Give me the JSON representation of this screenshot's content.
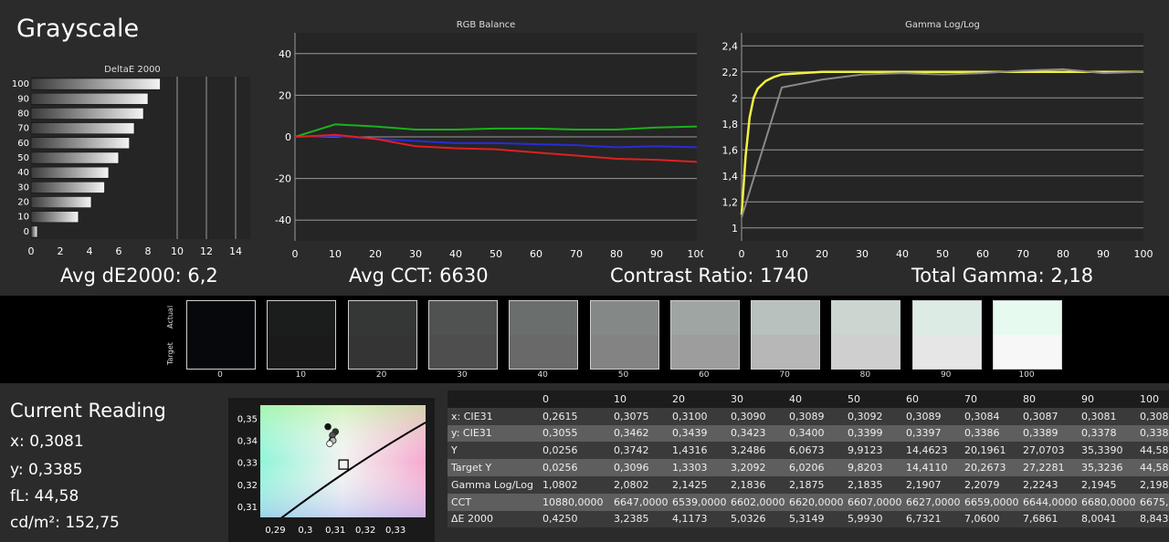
{
  "title": "Grayscale",
  "stats": {
    "avg_de": "Avg dE2000: 6,2",
    "avg_cct": "Avg CCT: 6630",
    "contrast": "Contrast Ratio: 1740",
    "gamma": "Total Gamma: 2,18"
  },
  "swatches": {
    "actual_label": "Actual",
    "target_label": "Target",
    "items": [
      {
        "label": "0",
        "actual": "#07080b",
        "target": "#07080b"
      },
      {
        "label": "10",
        "actual": "#1b1d1d",
        "target": "#1a1a1a"
      },
      {
        "label": "20",
        "actual": "#353737",
        "target": "#343434"
      },
      {
        "label": "30",
        "actual": "#4f5250",
        "target": "#4e4e4e"
      },
      {
        "label": "40",
        "actual": "#6a6e6c",
        "target": "#696969"
      },
      {
        "label": "50",
        "actual": "#848987",
        "target": "#838383"
      },
      {
        "label": "60",
        "actual": "#9ea5a2",
        "target": "#9d9d9d"
      },
      {
        "label": "70",
        "actual": "#b8c1bd",
        "target": "#b7b7b7"
      },
      {
        "label": "80",
        "actual": "#cbd6d0",
        "target": "#cfcfcf"
      },
      {
        "label": "90",
        "actual": "#dcebe4",
        "target": "#e6e6e6"
      },
      {
        "label": "100",
        "actual": "#e6faf0",
        "target": "#f7f7f7"
      }
    ]
  },
  "reading": {
    "title": "Current Reading",
    "x": "x: 0,3081",
    "y": "y: 0,3385",
    "fl": "fL: 44,58",
    "cd": "cd/m²: 152,75"
  },
  "table": {
    "columns": [
      "",
      "0",
      "10",
      "20",
      "30",
      "40",
      "50",
      "60",
      "70",
      "80",
      "90",
      "100"
    ],
    "rows": [
      {
        "label": "x: CIE31",
        "values": [
          "0,2615",
          "0,3075",
          "0,3100",
          "0,3090",
          "0,3089",
          "0,3092",
          "0,3089",
          "0,3084",
          "0,3087",
          "0,3081",
          "0,308"
        ]
      },
      {
        "label": "y: CIE31",
        "values": [
          "0,3055",
          "0,3462",
          "0,3439",
          "0,3423",
          "0,3400",
          "0,3399",
          "0,3397",
          "0,3386",
          "0,3389",
          "0,3378",
          "0,338"
        ]
      },
      {
        "label": "Y",
        "values": [
          "0,0256",
          "0,3742",
          "1,4316",
          "3,2486",
          "6,0673",
          "9,9123",
          "14,4623",
          "20,1961",
          "27,0703",
          "35,3390",
          "44,58"
        ]
      },
      {
        "label": "Target Y",
        "values": [
          "0,0256",
          "0,3096",
          "1,3303",
          "3,2092",
          "6,0206",
          "9,8203",
          "14,4110",
          "20,2673",
          "27,2281",
          "35,3236",
          "44,58"
        ]
      },
      {
        "label": "Gamma Log/Log",
        "values": [
          "1,0802",
          "2,0802",
          "2,1425",
          "2,1836",
          "2,1875",
          "2,1835",
          "2,1907",
          "2,2079",
          "2,2243",
          "2,1945",
          "2,198"
        ]
      },
      {
        "label": "CCT",
        "values": [
          "10880,0000",
          "6647,0000",
          "6539,0000",
          "6602,0000",
          "6620,0000",
          "6607,0000",
          "6627,0000",
          "6659,0000",
          "6644,0000",
          "6680,0000",
          "6675,"
        ]
      },
      {
        "label": "ΔE 2000",
        "values": [
          "0,4250",
          "3,2385",
          "4,1173",
          "5,0326",
          "5,3149",
          "5,9930",
          "6,7321",
          "7,0600",
          "7,6861",
          "8,0041",
          "8,843"
        ]
      }
    ]
  },
  "chart_data": [
    {
      "type": "bar",
      "orientation": "horizontal",
      "title": "DeltaE 2000",
      "categories": [
        "0",
        "10",
        "20",
        "30",
        "40",
        "50",
        "60",
        "70",
        "80",
        "90",
        "100"
      ],
      "values": [
        0.43,
        3.24,
        4.12,
        5.03,
        5.31,
        5.99,
        6.73,
        7.06,
        7.69,
        8.0,
        8.84
      ],
      "xlim": [
        0,
        15
      ],
      "xticks": [
        "0",
        "2",
        "4",
        "6",
        "8",
        "10",
        "12",
        "14"
      ],
      "grid_lines_at": [
        10,
        12,
        14
      ]
    },
    {
      "type": "line",
      "title": "RGB Balance",
      "x": [
        0,
        10,
        20,
        30,
        40,
        50,
        60,
        70,
        80,
        90,
        100
      ],
      "xticks": [
        "0",
        "10",
        "20",
        "30",
        "40",
        "50",
        "60",
        "70",
        "80",
        "90",
        "100"
      ],
      "yticks": [
        "40",
        "20",
        "0",
        "-20",
        "-40"
      ],
      "ylim": [
        -50,
        50
      ],
      "series": [
        {
          "color": "#1cb11c",
          "values": [
            0,
            6,
            5,
            3.5,
            3.5,
            4,
            4,
            3.5,
            3.5,
            4.5,
            5
          ]
        },
        {
          "color": "#2b2bd8",
          "values": [
            0,
            0.5,
            -1,
            -2,
            -3,
            -3,
            -3.5,
            -4,
            -5,
            -4.5,
            -5
          ]
        },
        {
          "color": "#e02020",
          "values": [
            0,
            1,
            -1,
            -4.5,
            -5.5,
            -6,
            -7.5,
            -9,
            -10.5,
            -11,
            -12
          ]
        }
      ]
    },
    {
      "type": "line",
      "title": "Gamma Log/Log",
      "x": [
        0,
        10,
        20,
        30,
        40,
        50,
        60,
        70,
        80,
        90,
        100
      ],
      "xticks": [
        "0",
        "10",
        "20",
        "30",
        "40",
        "50",
        "60",
        "70",
        "80",
        "90",
        "100"
      ],
      "yticks": [
        "2,4",
        "2,2",
        "2",
        "1,8",
        "1,6",
        "1,4",
        "1,2",
        "1"
      ],
      "ylim": [
        0.9,
        2.5
      ],
      "series": [
        {
          "color": "#f3f043",
          "x": [
            0,
            1,
            2,
            3,
            4,
            6,
            8,
            10,
            15,
            20,
            30,
            100
          ],
          "values": [
            1.1,
            1.55,
            1.85,
            2.0,
            2.07,
            2.13,
            2.16,
            2.18,
            2.19,
            2.2,
            2.2,
            2.2
          ]
        },
        {
          "color": "#8a8a8a",
          "x": [
            0,
            10,
            20,
            30,
            40,
            50,
            60,
            70,
            80,
            90,
            100
          ],
          "values": [
            1.08,
            2.08,
            2.14,
            2.18,
            2.19,
            2.18,
            2.19,
            2.21,
            2.22,
            2.19,
            2.2
          ]
        }
      ]
    },
    {
      "type": "scatter",
      "title": "",
      "xlim": [
        0.285,
        0.34
      ],
      "ylim": [
        0.305,
        0.356
      ],
      "xticks": [
        "0,29",
        "0,3",
        "0,31",
        "0,32",
        "0,33"
      ],
      "yticks": [
        "0,35",
        "0,34",
        "0,33",
        "0,32",
        "0,31"
      ],
      "target_point": {
        "x": 0.3127,
        "y": 0.329
      },
      "points": [
        {
          "x": 0.3075,
          "y": 0.3462,
          "color": "#111111"
        },
        {
          "x": 0.31,
          "y": 0.3439,
          "color": "#333333"
        },
        {
          "x": 0.309,
          "y": 0.3423,
          "color": "#555555"
        },
        {
          "x": 0.3089,
          "y": 0.34,
          "color": "#999999"
        },
        {
          "x": 0.3092,
          "y": 0.3399,
          "color": "#bbbbbb"
        },
        {
          "x": 0.3081,
          "y": 0.3385,
          "color": "#ffffff"
        }
      ]
    }
  ]
}
